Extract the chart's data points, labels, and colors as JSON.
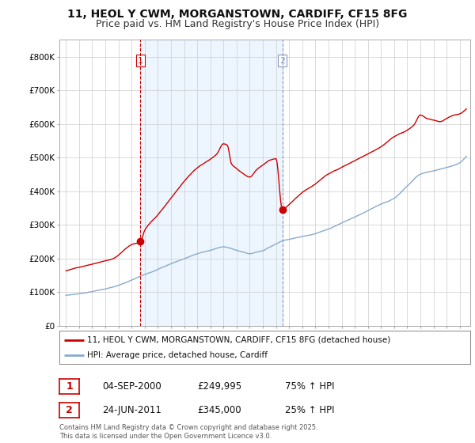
{
  "title": "11, HEOL Y CWM, MORGANSTOWN, CARDIFF, CF15 8FG",
  "subtitle": "Price paid vs. HM Land Registry's House Price Index (HPI)",
  "ylim": [
    0,
    850000
  ],
  "yticks": [
    0,
    100000,
    200000,
    300000,
    400000,
    500000,
    600000,
    700000,
    800000
  ],
  "ytick_labels": [
    "£0",
    "£100K",
    "£200K",
    "£300K",
    "£400K",
    "£500K",
    "£600K",
    "£700K",
    "£800K"
  ],
  "legend_line1": "11, HEOL Y CWM, MORGANSTOWN, CARDIFF, CF15 8FG (detached house)",
  "legend_line2": "HPI: Average price, detached house, Cardiff",
  "purchase1_date": "04-SEP-2000",
  "purchase1_price": "£249,995",
  "purchase1_hpi": "75% ↑ HPI",
  "purchase2_date": "24-JUN-2011",
  "purchase2_price": "£345,000",
  "purchase2_hpi": "25% ↑ HPI",
  "footer": "Contains HM Land Registry data © Crown copyright and database right 2025.\nThis data is licensed under the Open Government Licence v3.0.",
  "line_color_red": "#cc0000",
  "line_color_blue": "#88aacc",
  "background_color": "#ffffff",
  "grid_color": "#cccccc",
  "title_fontsize": 10,
  "subtitle_fontsize": 9,
  "vline1_color": "#cc0000",
  "vline2_color": "#8899bb",
  "purchase1_x": 2000.67,
  "purchase2_x": 2011.48,
  "purchase1_marker_y": 249995,
  "purchase2_marker_y": 345000,
  "xlim_left": 1994.5,
  "xlim_right": 2025.8,
  "shade_color": "#ddeeff",
  "shade_alpha": 0.5
}
